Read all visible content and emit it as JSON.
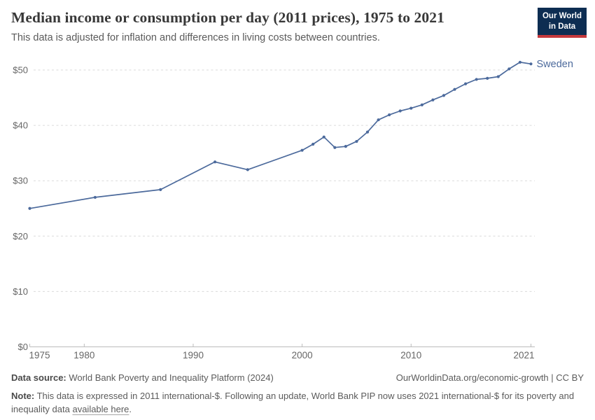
{
  "header": {
    "title": "Median income or consumption per day (2011 prices), 1975 to 2021",
    "subtitle": "This data is adjusted for inflation and differences in living costs between countries.",
    "logo": {
      "line1": "Our World",
      "line2": "in Data"
    }
  },
  "chart_data": {
    "type": "line",
    "title": "Median income or consumption per day (2011 prices), 1975 to 2021",
    "xlabel": "",
    "ylabel": "",
    "xlim": [
      1975,
      2021
    ],
    "ylim": [
      0,
      52
    ],
    "grid": "horizontal-dashed",
    "legend_position": "end-of-line-label",
    "x_ticks": [
      1975,
      1980,
      1990,
      2000,
      2010,
      2021
    ],
    "x_tick_labels": [
      "1975",
      "1980",
      "1990",
      "2000",
      "2010",
      "2021"
    ],
    "y_ticks": [
      0,
      10,
      20,
      30,
      40,
      50
    ],
    "y_tick_labels": [
      "$0",
      "$10",
      "$20",
      "$30",
      "$40",
      "$50"
    ],
    "series": [
      {
        "name": "Sweden",
        "color": "#4c6a9c",
        "points": [
          [
            1975,
            25.0
          ],
          [
            1981,
            27.0
          ],
          [
            1987,
            28.4
          ],
          [
            1992,
            33.4
          ],
          [
            1995,
            32.0
          ],
          [
            2000,
            35.5
          ],
          [
            2001,
            36.6
          ],
          [
            2002,
            37.9
          ],
          [
            2003,
            36.0
          ],
          [
            2004,
            36.2
          ],
          [
            2005,
            37.1
          ],
          [
            2006,
            38.8
          ],
          [
            2007,
            41.0
          ],
          [
            2008,
            41.9
          ],
          [
            2009,
            42.6
          ],
          [
            2010,
            43.1
          ],
          [
            2011,
            43.7
          ],
          [
            2012,
            44.6
          ],
          [
            2013,
            45.4
          ],
          [
            2014,
            46.5
          ],
          [
            2015,
            47.5
          ],
          [
            2016,
            48.3
          ],
          [
            2017,
            48.5
          ],
          [
            2018,
            48.8
          ],
          [
            2019,
            50.2
          ],
          [
            2020,
            51.4
          ],
          [
            2021,
            51.1
          ]
        ]
      }
    ]
  },
  "footer": {
    "datasource_label": "Data source:",
    "datasource_text": "World Bank Poverty and Inequality Platform (2024)",
    "credit": "OurWorldinData.org/economic-growth | CC BY",
    "note_label": "Note:",
    "note_text": "This data is expressed in 2011 international-$. Following an update, World Bank PIP now uses 2021 international-$ for its poverty and inequality data",
    "note_link": "available here",
    "note_suffix": "."
  },
  "colors": {
    "accent_line": "#4c6a9c",
    "logo_bg": "#0d2d52",
    "logo_red": "#c5383c",
    "grid": "#dadada",
    "axis": "#bcbcbc",
    "tick_label": "#666666",
    "title": "#383838",
    "body_text": "#5b5b5b"
  }
}
